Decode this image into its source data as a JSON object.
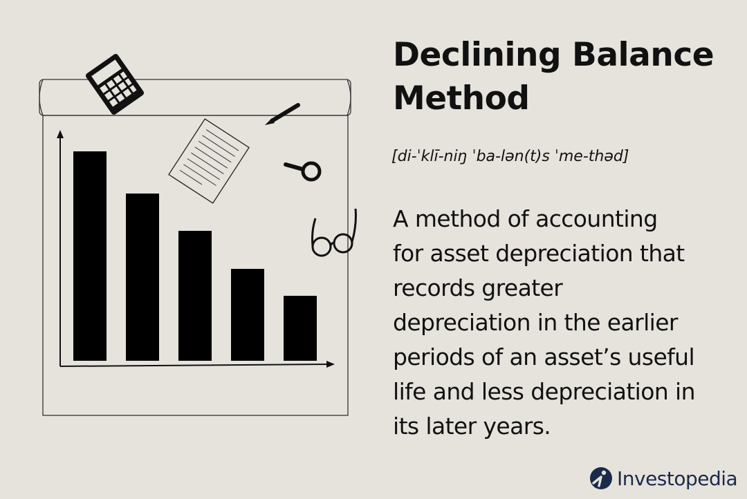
{
  "header": {
    "title_lines": [
      "Declining Balance",
      "Method"
    ],
    "pronunciation": "[di-ˈklī-niŋ ˈba-lən(t)s ˈme-thəd]"
  },
  "definition": {
    "lines": [
      "A method of accounting",
      "for asset depreciation that",
      "records greater",
      "depreciation in the earlier",
      "periods of an asset’s useful",
      "life and less depreciation in",
      "its later years."
    ]
  },
  "brand": {
    "name": "Investopedia",
    "color": "#1b2a4a"
  },
  "illustration": {
    "icons": [
      "calculator-icon",
      "pencil-icon",
      "document-icon",
      "magnifier-icon",
      "glasses-icon"
    ],
    "bar_levels": [
      1.0,
      0.8,
      0.62,
      0.44,
      0.31
    ]
  }
}
